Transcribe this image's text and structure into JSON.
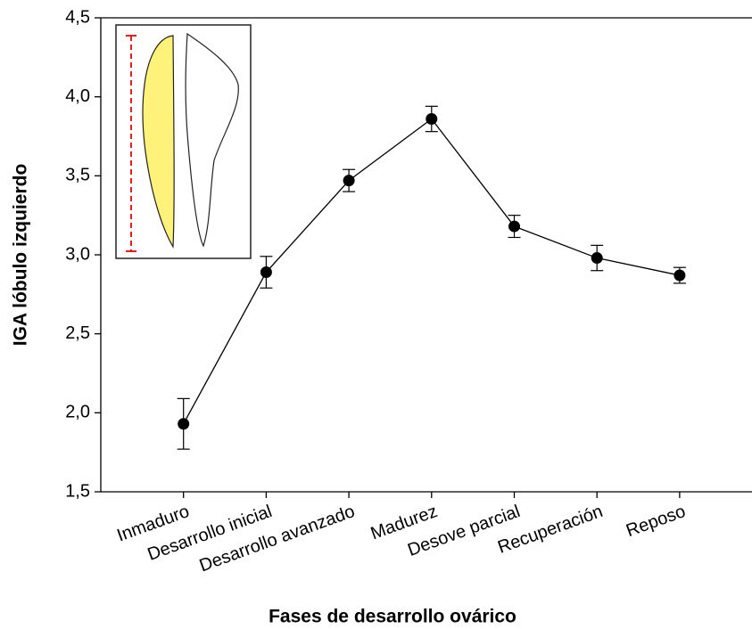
{
  "chart_data": {
    "type": "line",
    "x_label": "Fases de desarrollo ovárico",
    "y_label": "IGA lóbulo izquierdo",
    "categories": [
      "Inmaduro",
      "Desarrollo inicial",
      "Desarrollo avanzado",
      "Madurez",
      "Desove parcial",
      "Recuperación",
      "Reposo"
    ],
    "values": [
      1.93,
      2.89,
      3.47,
      3.86,
      3.18,
      2.98,
      2.87
    ],
    "errors": [
      0.16,
      0.1,
      0.07,
      0.08,
      0.07,
      0.08,
      0.05
    ],
    "color": "#000000",
    "ylim": [
      1.5,
      4.5
    ],
    "yticks": [
      {
        "value": 1.5,
        "label": "1,5"
      },
      {
        "value": 2.0,
        "label": "2,0"
      },
      {
        "value": 2.5,
        "label": "2,5"
      },
      {
        "value": 3.0,
        "label": "3,0"
      },
      {
        "value": 3.5,
        "label": "3,5"
      },
      {
        "value": 4.0,
        "label": "4,0"
      },
      {
        "value": 4.5,
        "label": "4,5"
      }
    ],
    "grid": false
  }
}
